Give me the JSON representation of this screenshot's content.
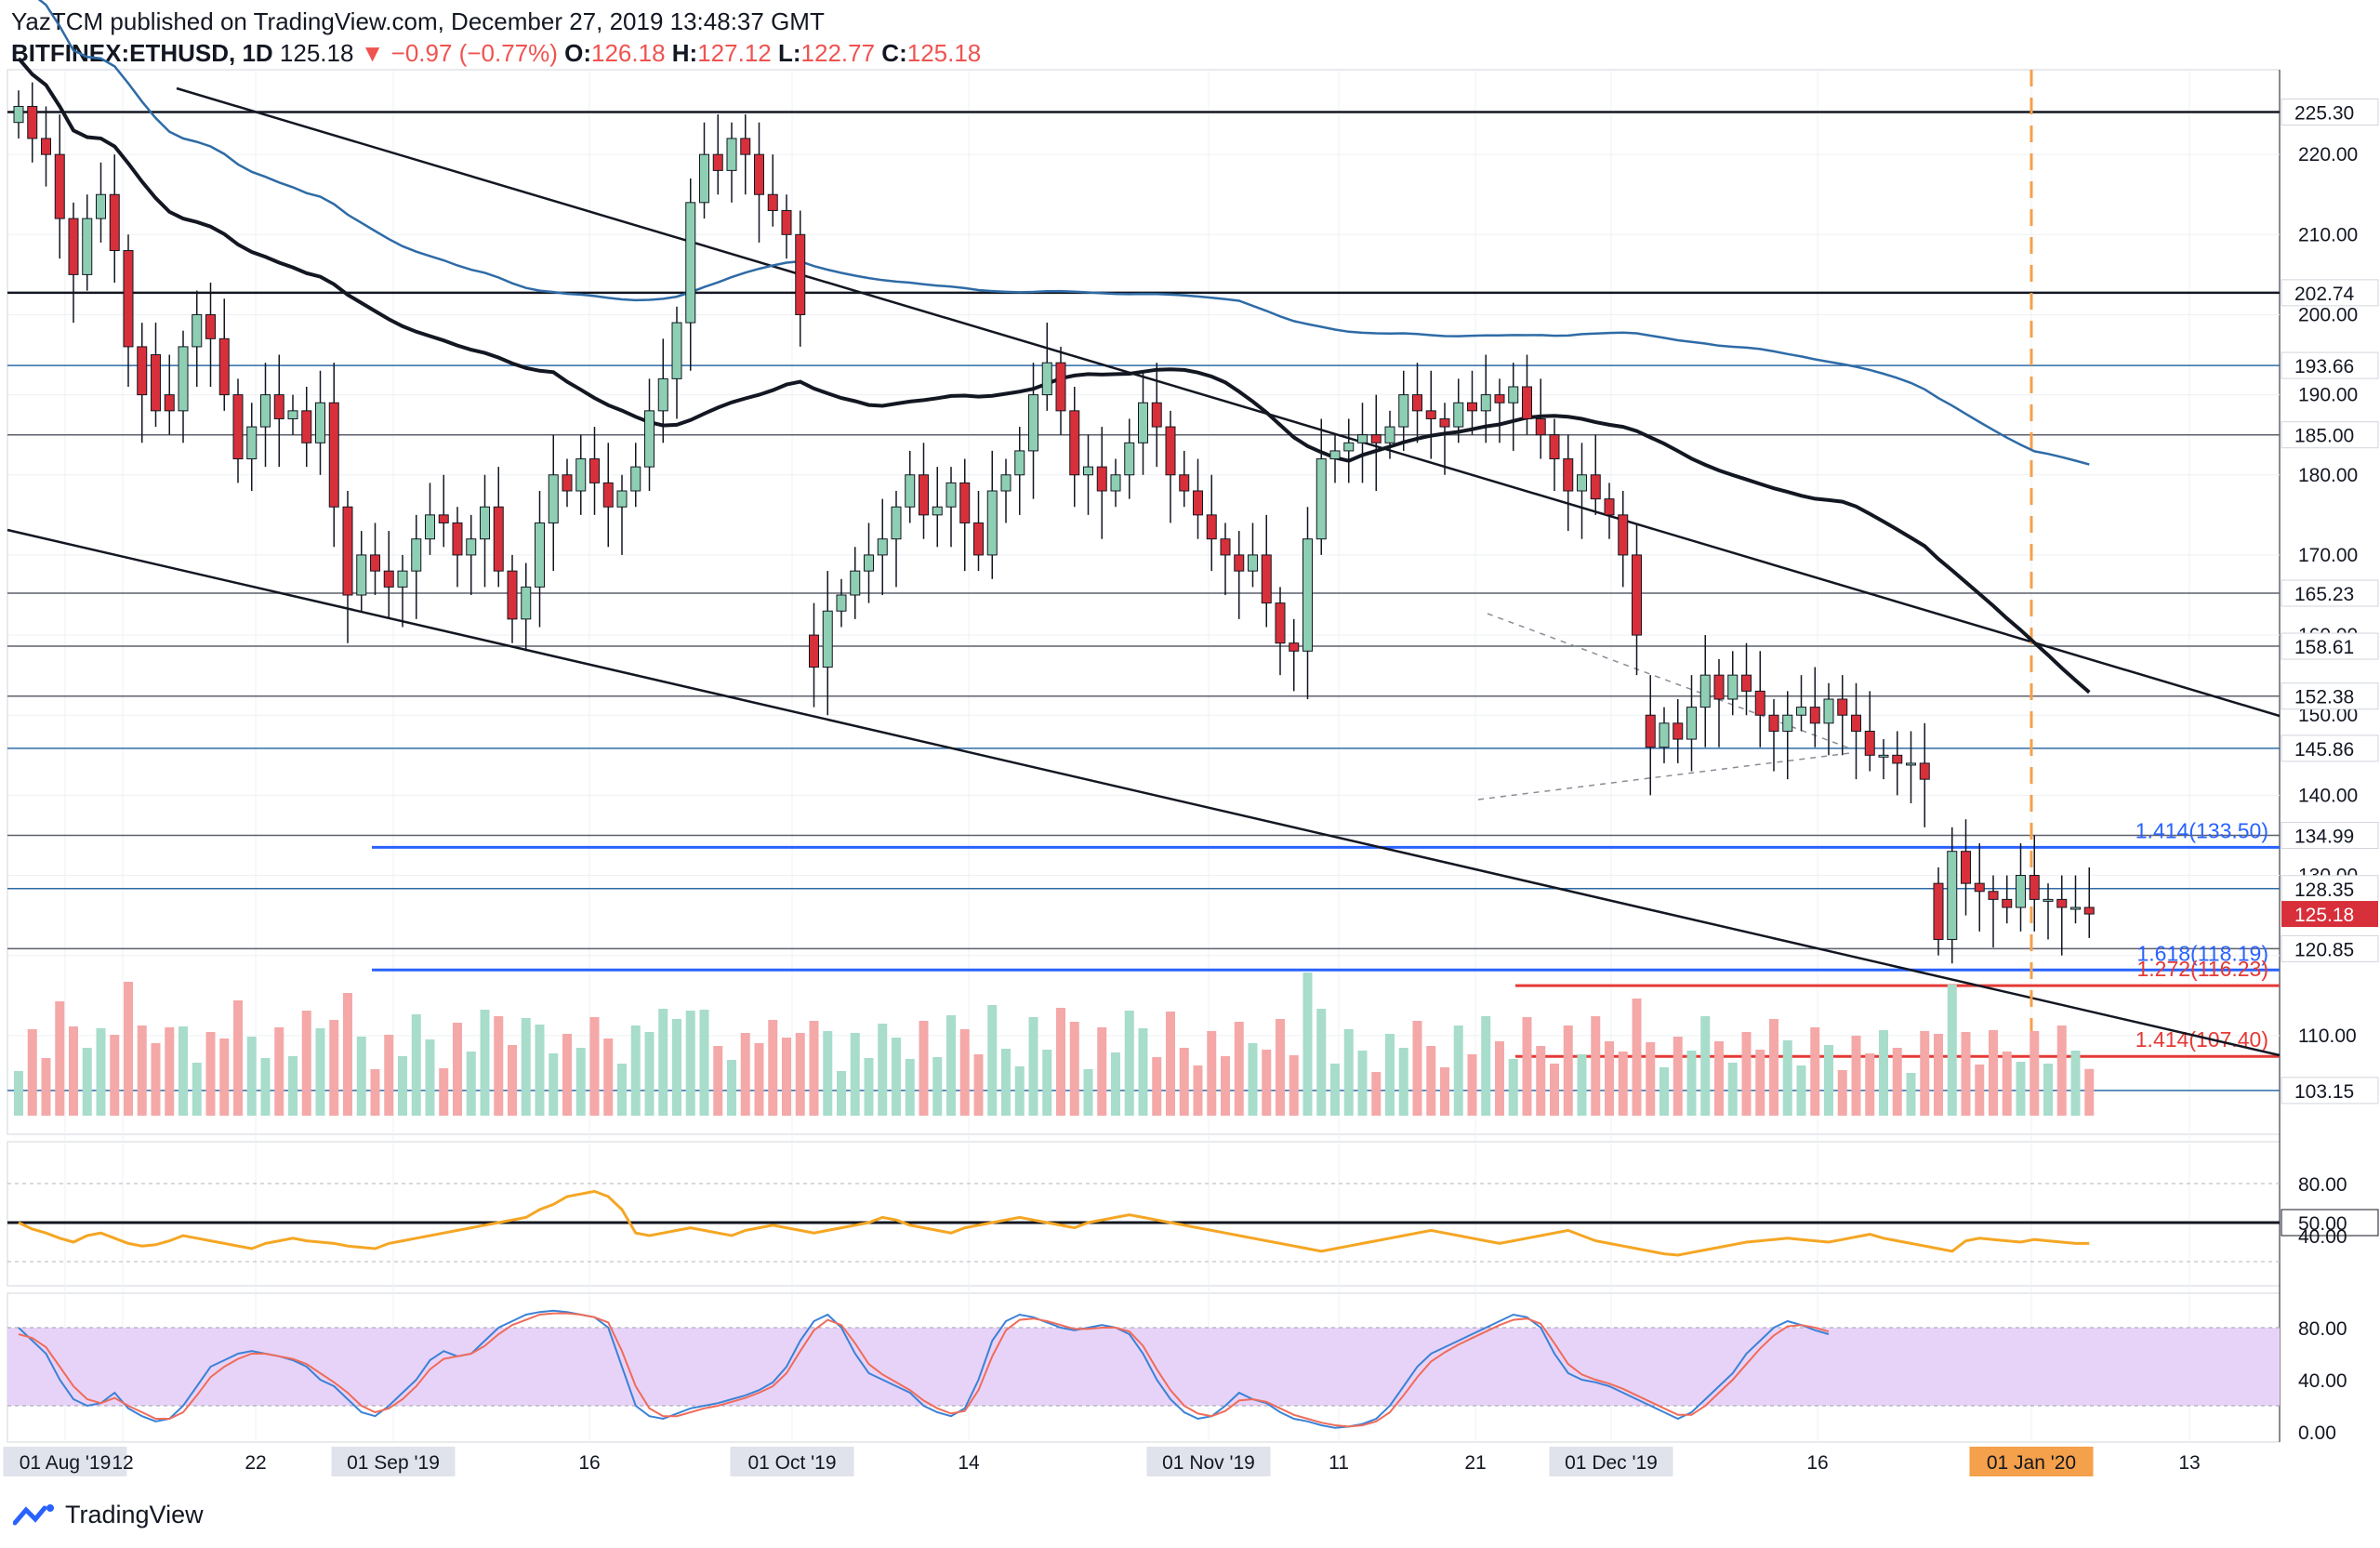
{
  "header": {
    "published_line": "YazTCM published on TradingView.com, December 27, 2019 13:48:37 GMT",
    "symbol": "BITFINEX:ETHUSD, 1D",
    "last": "125.18",
    "change_arrow": "▼",
    "change": "−0.97 (−0.77%)",
    "o_label": "O:",
    "o": "126.18",
    "h_label": "H:",
    "h": "127.12",
    "l_label": "L:",
    "l": "122.77",
    "c_label": "C:",
    "c": "125.18"
  },
  "brand": {
    "name": "TradingView"
  },
  "colors": {
    "up": "#8ecfb4",
    "down": "#d7303a",
    "ma_black": "#131722",
    "ma_blue": "#2e6ba6",
    "level_gray": "#5d606b",
    "level_blue": "#2962ff",
    "level_red": "#e53935",
    "projection": "#f5a04a",
    "rsi": "#f5a623",
    "stoch_k": "#3a82d6",
    "stoch_d": "#ef6c5a",
    "stoch_band": "#e8d3f8"
  },
  "chart_data": [
    {
      "type": "candlestick",
      "symbol": "BITFINEX:ETHUSD",
      "interval": "1D",
      "y_axis": {
        "min": 100,
        "max": 230,
        "ticks": [
          "110.00",
          "120.00",
          "130.00",
          "140.00",
          "150.00",
          "160.00",
          "170.00",
          "180.00",
          "190.00",
          "200.00",
          "210.00",
          "220.00"
        ]
      },
      "x_axis_labels": [
        "01 Aug '19",
        "12",
        "22",
        "01 Sep '19",
        "16",
        "01 Oct '19",
        "14",
        "01 Nov '19",
        "11",
        "21",
        "01 Dec '19",
        "16",
        "01 Jan '20",
        "13"
      ],
      "horizontal_levels": [
        {
          "label": "225.30",
          "value": 225.3,
          "color": "black"
        },
        {
          "label": "202.74",
          "value": 202.74,
          "color": "black"
        },
        {
          "label": "193.66",
          "value": 193.66,
          "color": "blue"
        },
        {
          "label": "185.00",
          "value": 185.0,
          "color": "gray"
        },
        {
          "label": "165.23",
          "value": 165.23,
          "color": "gray"
        },
        {
          "label": "158.61",
          "value": 158.61,
          "color": "gray"
        },
        {
          "label": "152.38",
          "value": 152.38,
          "color": "gray"
        },
        {
          "label": "145.86",
          "value": 145.86,
          "color": "blue"
        },
        {
          "label": "134.99",
          "value": 134.99,
          "color": "gray"
        },
        {
          "label": "128.35",
          "value": 128.35,
          "color": "blue"
        },
        {
          "label": "120.85",
          "value": 120.85,
          "color": "gray"
        },
        {
          "label": "103.15",
          "value": 103.15,
          "color": "blue"
        }
      ],
      "fib_levels": [
        {
          "text": "1.414(133.50)",
          "value": 133.5,
          "color": "blue"
        },
        {
          "text": "1.618(118.19)",
          "value": 118.19,
          "color": "blue"
        },
        {
          "text": "1.272(116.23)",
          "value": 116.23,
          "color": "red"
        },
        {
          "text": "1.414(107.40)",
          "value": 107.4,
          "color": "red"
        }
      ],
      "last_price": {
        "label": "125.18",
        "value": 125.18
      },
      "series": [
        {
          "name": "",
          "kind": "ohlc",
          "open": [
            224,
            226,
            222,
            220,
            212,
            205,
            212,
            215,
            208,
            196,
            195,
            190,
            188,
            196,
            200,
            197,
            190,
            182,
            186,
            190,
            187,
            188,
            184,
            189,
            176,
            165,
            170,
            168,
            166,
            168,
            172,
            175,
            174,
            170,
            172,
            176,
            168,
            162,
            166,
            174,
            180,
            178,
            182,
            179,
            176,
            178,
            181,
            188,
            192,
            199,
            214,
            220,
            218,
            222,
            220,
            215,
            213,
            210,
            160,
            156,
            163,
            165,
            168,
            170,
            172,
            176,
            180,
            175,
            176,
            179,
            174,
            170,
            178,
            180,
            183,
            190,
            194,
            188,
            180,
            181,
            178,
            180,
            184,
            189,
            186,
            180,
            178,
            175,
            172,
            170,
            168,
            170,
            164,
            159,
            158,
            172,
            182,
            183,
            184,
            185,
            184,
            186,
            190,
            188,
            187,
            186,
            189,
            188,
            190,
            189,
            191,
            187,
            185,
            182,
            178,
            180,
            177,
            175,
            170,
            150,
            146,
            149,
            147,
            151,
            155,
            152,
            155,
            153,
            150,
            148,
            150,
            151,
            149,
            152,
            150,
            148,
            145,
            145,
            144,
            144,
            129,
            122,
            133,
            129,
            128,
            127,
            126,
            130,
            127,
            127,
            126,
            126
          ],
          "close": [
            226,
            222,
            220,
            212,
            205,
            212,
            215,
            208,
            196,
            190,
            188,
            188,
            196,
            200,
            197,
            190,
            182,
            186,
            190,
            187,
            188,
            184,
            189,
            176,
            165,
            170,
            168,
            166,
            168,
            172,
            175,
            174,
            170,
            172,
            176,
            168,
            162,
            166,
            174,
            180,
            178,
            182,
            179,
            176,
            178,
            181,
            188,
            192,
            199,
            214,
            220,
            218,
            222,
            220,
            215,
            213,
            210,
            200,
            156,
            163,
            165,
            168,
            170,
            172,
            176,
            180,
            175,
            176,
            179,
            174,
            170,
            178,
            180,
            183,
            190,
            194,
            188,
            180,
            181,
            178,
            180,
            184,
            189,
            186,
            180,
            178,
            175,
            172,
            170,
            168,
            170,
            164,
            159,
            158,
            172,
            182,
            183,
            184,
            185,
            184,
            186,
            190,
            188,
            187,
            186,
            189,
            188,
            190,
            189,
            191,
            187,
            185,
            182,
            178,
            180,
            177,
            175,
            170,
            160,
            146,
            149,
            147,
            151,
            155,
            152,
            155,
            153,
            150,
            148,
            150,
            151,
            149,
            152,
            150,
            148,
            145,
            145,
            144,
            144,
            142,
            122,
            133,
            129,
            128,
            127,
            126,
            130,
            127,
            127,
            126,
            126,
            125.18
          ]
        }
      ]
    },
    {
      "type": "line",
      "name_hint": "",
      "ticks": [
        "80.00",
        "50.00",
        "40.00"
      ],
      "level_label": "50.00",
      "values": [
        50,
        45,
        42,
        38,
        35,
        40,
        42,
        38,
        34,
        32,
        33,
        36,
        40,
        38,
        36,
        34,
        32,
        30,
        34,
        36,
        38,
        36,
        35,
        34,
        32,
        31,
        30,
        34,
        36,
        38,
        40,
        42,
        44,
        46,
        48,
        50,
        52,
        54,
        60,
        64,
        70,
        72,
        74,
        70,
        60,
        42,
        40,
        42,
        44,
        46,
        44,
        42,
        40,
        44,
        46,
        48,
        46,
        44,
        42,
        44,
        46,
        48,
        50,
        54,
        52,
        48,
        46,
        44,
        42,
        46,
        48,
        50,
        52,
        54,
        52,
        50,
        48,
        46,
        50,
        52,
        54,
        56,
        54,
        52,
        50,
        48,
        46,
        44,
        42,
        40,
        38,
        36,
        34,
        32,
        30,
        28,
        30,
        32,
        34,
        36,
        38,
        40,
        42,
        44,
        42,
        40,
        38,
        36,
        34,
        36,
        38,
        40,
        42,
        44,
        40,
        36,
        34,
        32,
        30,
        28,
        26,
        25,
        27,
        29,
        31,
        33,
        35,
        36,
        37,
        38,
        37,
        36,
        35,
        37,
        39,
        41,
        38,
        36,
        34,
        32,
        30,
        28,
        36,
        38,
        37,
        36,
        35,
        37,
        36,
        35,
        34,
        34
      ]
    },
    {
      "type": "line",
      "ticks": [
        "80.00",
        "40.00",
        "0.00"
      ],
      "band": [
        20,
        80
      ],
      "series": [
        {
          "name": "",
          "values": [
            80,
            70,
            60,
            40,
            25,
            20,
            22,
            30,
            18,
            12,
            8,
            10,
            20,
            35,
            50,
            55,
            60,
            62,
            60,
            58,
            55,
            50,
            40,
            35,
            25,
            15,
            12,
            20,
            30,
            40,
            55,
            62,
            58,
            60,
            70,
            80,
            85,
            90,
            92,
            93,
            92,
            90,
            88,
            80,
            50,
            20,
            12,
            10,
            14,
            18,
            20,
            22,
            25,
            28,
            32,
            38,
            50,
            70,
            85,
            90,
            80,
            60,
            45,
            40,
            35,
            30,
            20,
            15,
            12,
            18,
            40,
            70,
            85,
            90,
            88,
            84,
            80,
            78,
            80,
            82,
            80,
            75,
            60,
            40,
            25,
            15,
            10,
            12,
            20,
            30,
            25,
            22,
            15,
            10,
            8,
            5,
            3,
            4,
            6,
            10,
            20,
            35,
            50,
            60,
            65,
            70,
            75,
            80,
            85,
            90,
            88,
            80,
            60,
            45,
            40,
            38,
            35,
            30,
            25,
            20,
            15,
            10,
            15,
            25,
            35,
            45,
            60,
            70,
            80,
            85,
            82,
            78,
            75
          ]
        },
        {
          "name": "",
          "values": [
            75,
            72,
            65,
            50,
            35,
            25,
            22,
            26,
            20,
            15,
            10,
            10,
            15,
            28,
            42,
            50,
            56,
            60,
            60,
            58,
            56,
            52,
            45,
            38,
            30,
            20,
            15,
            18,
            25,
            35,
            48,
            56,
            58,
            60,
            66,
            75,
            82,
            86,
            90,
            91,
            91,
            90,
            88,
            84,
            62,
            35,
            18,
            12,
            12,
            15,
            18,
            20,
            23,
            26,
            30,
            35,
            45,
            62,
            78,
            86,
            82,
            68,
            52,
            44,
            38,
            32,
            24,
            18,
            14,
            16,
            32,
            58,
            78,
            86,
            87,
            85,
            82,
            79,
            79,
            80,
            80,
            77,
            66,
            48,
            32,
            20,
            14,
            12,
            16,
            24,
            25,
            23,
            18,
            13,
            10,
            7,
            5,
            4,
            5,
            8,
            15,
            28,
            42,
            54,
            61,
            67,
            72,
            77,
            82,
            86,
            87,
            83,
            68,
            52,
            44,
            40,
            37,
            33,
            28,
            23,
            18,
            13,
            13,
            20,
            30,
            40,
            52,
            64,
            74,
            81,
            82,
            80,
            77
          ]
        }
      ]
    }
  ]
}
